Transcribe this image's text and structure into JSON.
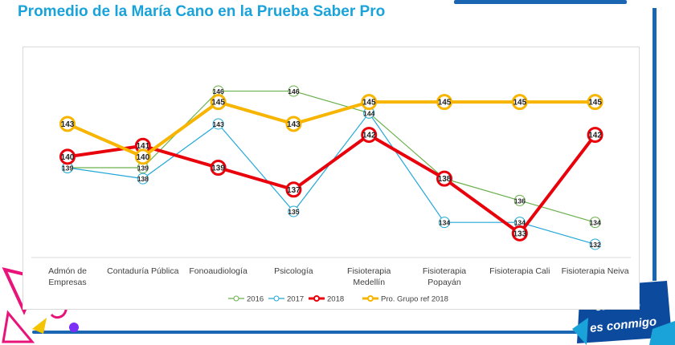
{
  "page_title": "Promedio de la María Cano en la Prueba Saber Pro",
  "chart_data": {
    "type": "line",
    "title": "",
    "xlabel": "",
    "ylabel": "",
    "ylim": [
      128,
      150
    ],
    "grid": false,
    "legend_position": "bottom",
    "categories": [
      [
        "Admón de",
        "Empresas"
      ],
      [
        "Contaduría Pública"
      ],
      [
        "Fonoaudiología"
      ],
      [
        "Psicología"
      ],
      [
        "Fisioterapia",
        "Medellín"
      ],
      [
        "Fisioterapia",
        "Popayán"
      ],
      [
        "Fisioterapia Cali"
      ],
      [
        "Fisioterapia Neiva"
      ]
    ],
    "series": [
      {
        "name": "2016",
        "values": [
          139,
          139,
          146,
          146,
          144,
          138,
          136,
          134
        ],
        "color": "#6ab04c",
        "style": "thin"
      },
      {
        "name": "2017",
        "values": [
          139,
          138,
          143,
          135,
          144,
          134,
          134,
          132
        ],
        "color": "#22a8d8",
        "style": "thin"
      },
      {
        "name": "2018",
        "values": [
          140,
          141,
          139,
          137,
          142,
          138,
          133,
          142
        ],
        "color": "#e8000b",
        "style": "bold"
      },
      {
        "name": "Pro. Grupo ref 2018",
        "values": [
          143,
          140,
          145,
          143,
          145,
          145,
          145,
          145
        ],
        "color": "#f7b500",
        "style": "bold"
      }
    ]
  },
  "decoration": {
    "banner_lines": [
      "ación",
      "es conmigo"
    ]
  }
}
